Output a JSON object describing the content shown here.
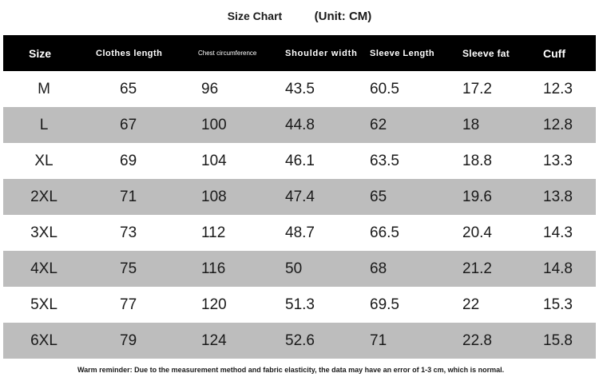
{
  "title": {
    "main": "Size Chart",
    "unit": "(Unit: CM)"
  },
  "table": {
    "headers": [
      "Size",
      "Clothes length",
      "Chest circumference",
      "Shoulder width",
      "Sleeve Length",
      "Sleeve fat",
      "Cuff"
    ],
    "rows": [
      [
        "M",
        "65",
        "96",
        "43.5",
        "60.5",
        "17.2",
        "12.3"
      ],
      [
        "L",
        "67",
        "100",
        "44.8",
        "62",
        "18",
        "12.8"
      ],
      [
        "XL",
        "69",
        "104",
        "46.1",
        "63.5",
        "18.8",
        "13.3"
      ],
      [
        "2XL",
        "71",
        "108",
        "47.4",
        "65",
        "19.6",
        "13.8"
      ],
      [
        "3XL",
        "73",
        "112",
        "48.7",
        "66.5",
        "20.4",
        "14.3"
      ],
      [
        "4XL",
        "75",
        "116",
        "50",
        "68",
        "21.2",
        "14.8"
      ],
      [
        "5XL",
        "77",
        "120",
        "51.3",
        "69.5",
        "22",
        "15.3"
      ],
      [
        "6XL",
        "79",
        "124",
        "52.6",
        "71",
        "22.8",
        "15.8"
      ]
    ]
  },
  "note": "Warm reminder: Due to the measurement method and fabric elasticity, the data may have an error of 1-3 cm, which is normal.",
  "colors": {
    "header_bg": "#000000",
    "alt_row_bg": "#bdbdbd"
  }
}
